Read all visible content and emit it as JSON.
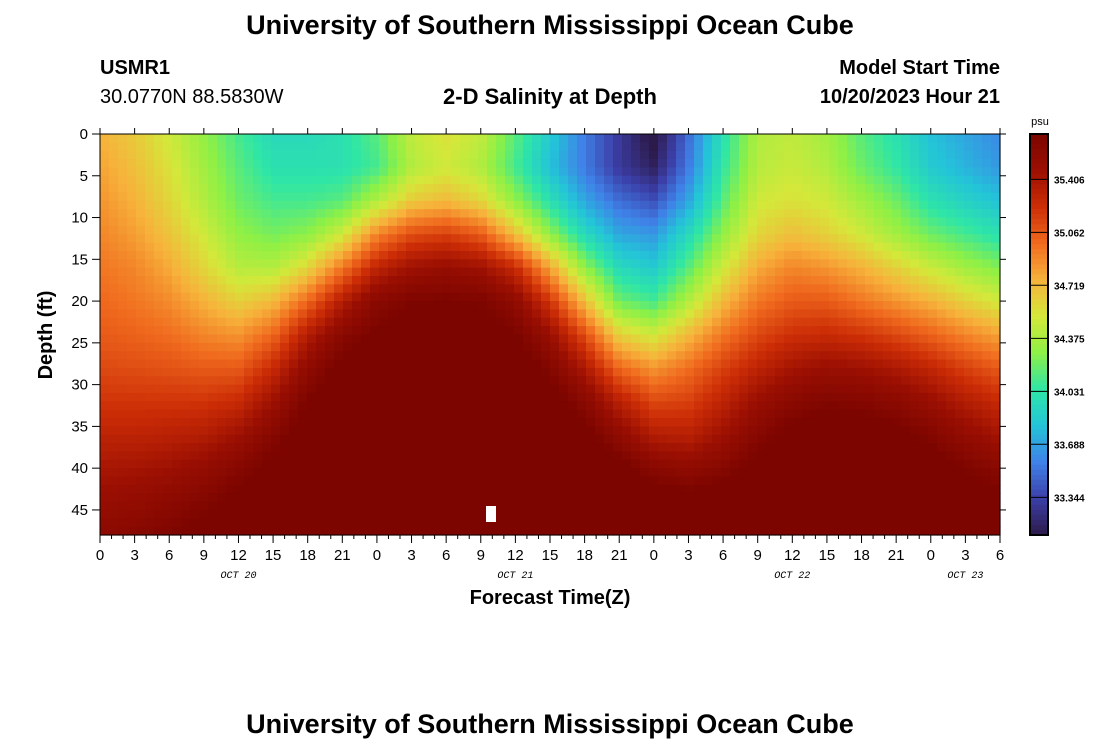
{
  "header": {
    "title": "University of Southern Mississippi Ocean Cube",
    "station_id": "USMR1",
    "station_coords": "30.0770N  88.5830W",
    "plot_title": "2-D Salinity at Depth",
    "start_label": "Model Start Time",
    "start_value": "10/20/2023 Hour 21"
  },
  "footer": {
    "title": "University of Southern Mississippi Ocean Cube"
  },
  "chart_data": {
    "type": "heatmap",
    "title": "2-D Salinity at Depth",
    "xlabel": "Forecast Time(Z)",
    "ylabel": "Depth (ft)",
    "x_hours_range": [
      0,
      78
    ],
    "y_range": [
      0,
      48
    ],
    "y_inverted": true,
    "x_tick_labels": [
      "0",
      "3",
      "6",
      "9",
      "12",
      "15",
      "18",
      "21",
      "0",
      "3",
      "6",
      "9",
      "12",
      "15",
      "18",
      "21",
      "0",
      "3",
      "6",
      "9",
      "12",
      "15",
      "18",
      "21",
      "0",
      "3",
      "6"
    ],
    "y_ticks": [
      0,
      5,
      10,
      15,
      20,
      25,
      30,
      35,
      40,
      45
    ],
    "date_labels": [
      {
        "label": "OCT 20",
        "hour": 12
      },
      {
        "label": "OCT 21",
        "hour": 36
      },
      {
        "label": "OCT 22",
        "hour": 60
      },
      {
        "label": "OCT 23",
        "hour": 75
      }
    ],
    "colorbar": {
      "unit": "psu",
      "ticks": [
        "35.406",
        "35.062",
        "34.719",
        "34.375",
        "34.031",
        "33.688",
        "33.344"
      ],
      "vmin": 33.1,
      "vmax": 35.7
    },
    "colormap": [
      "#2c1a4a",
      "#3c3fa8",
      "#3f82e8",
      "#23c4d8",
      "#2fe6a6",
      "#8ef045",
      "#d4e83a",
      "#f7b23b",
      "#f06a1e",
      "#cc2d06",
      "#9b0f02",
      "#7c0500"
    ],
    "depth_levels_ft": [
      0,
      4,
      8,
      12,
      16,
      20,
      24,
      28,
      32,
      36,
      40,
      44,
      48
    ],
    "forecast_hours": [
      0,
      3,
      6,
      9,
      12,
      15,
      18,
      21,
      24,
      27,
      30,
      33,
      36,
      39,
      42,
      45,
      48,
      51,
      54,
      57,
      60,
      63,
      66,
      69,
      72,
      75,
      78
    ],
    "salinity_grid": [
      [
        34.75,
        34.65,
        34.5,
        34.3,
        34.1,
        33.95,
        33.95,
        34.0,
        34.15,
        34.45,
        34.55,
        34.45,
        34.15,
        33.85,
        33.55,
        33.3,
        33.05,
        33.5,
        34.0,
        34.4,
        34.45,
        34.35,
        34.15,
        34.0,
        33.8,
        33.7,
        33.6
      ],
      [
        34.8,
        34.7,
        34.55,
        34.35,
        34.15,
        34.0,
        34.0,
        34.0,
        34.1,
        34.4,
        34.5,
        34.4,
        34.1,
        33.8,
        33.55,
        33.3,
        33.15,
        33.55,
        34.05,
        34.42,
        34.48,
        34.4,
        34.2,
        34.05,
        33.85,
        33.75,
        33.65
      ],
      [
        34.85,
        34.75,
        34.6,
        34.4,
        34.2,
        34.1,
        34.1,
        34.15,
        34.4,
        34.65,
        34.72,
        34.6,
        34.3,
        34.0,
        33.7,
        33.5,
        33.4,
        33.7,
        34.15,
        34.5,
        34.55,
        34.5,
        34.35,
        34.2,
        34.0,
        33.9,
        33.8
      ],
      [
        34.9,
        34.82,
        34.68,
        34.5,
        34.3,
        34.22,
        34.28,
        34.5,
        34.9,
        35.1,
        35.15,
        35.05,
        34.7,
        34.3,
        33.95,
        33.7,
        33.65,
        33.95,
        34.3,
        34.6,
        34.7,
        34.62,
        34.5,
        34.35,
        34.2,
        34.1,
        34.0
      ],
      [
        34.95,
        34.9,
        34.78,
        34.6,
        34.42,
        34.4,
        34.6,
        34.95,
        35.3,
        35.45,
        35.5,
        35.45,
        35.25,
        34.8,
        34.3,
        33.95,
        33.85,
        34.15,
        34.5,
        34.78,
        34.9,
        34.85,
        34.75,
        34.62,
        34.48,
        34.35,
        34.25
      ],
      [
        35.0,
        34.95,
        34.88,
        34.75,
        34.62,
        34.72,
        35.0,
        35.35,
        35.6,
        35.68,
        35.7,
        35.68,
        35.55,
        35.2,
        34.7,
        34.2,
        34.1,
        34.4,
        34.72,
        34.95,
        35.05,
        35.05,
        34.95,
        34.85,
        34.75,
        34.62,
        34.5
      ],
      [
        35.05,
        35.02,
        34.98,
        34.9,
        34.85,
        35.0,
        35.35,
        35.6,
        35.72,
        35.78,
        35.8,
        35.78,
        35.7,
        35.48,
        35.1,
        34.62,
        34.5,
        34.72,
        34.95,
        35.12,
        35.22,
        35.25,
        35.2,
        35.12,
        35.02,
        34.9,
        34.8
      ],
      [
        35.12,
        35.1,
        35.08,
        35.05,
        35.05,
        35.25,
        35.55,
        35.75,
        35.82,
        35.85,
        35.86,
        35.85,
        35.8,
        35.65,
        35.38,
        35.0,
        34.85,
        34.98,
        35.15,
        35.3,
        35.42,
        35.48,
        35.45,
        35.38,
        35.28,
        35.15,
        35.05
      ],
      [
        35.2,
        35.2,
        35.2,
        35.2,
        35.25,
        35.45,
        35.7,
        35.84,
        35.88,
        35.9,
        35.9,
        35.9,
        35.86,
        35.77,
        35.6,
        35.32,
        35.12,
        35.15,
        35.3,
        35.48,
        35.6,
        35.66,
        35.64,
        35.58,
        35.48,
        35.35,
        35.25
      ],
      [
        35.3,
        35.3,
        35.32,
        35.35,
        35.45,
        35.62,
        35.8,
        35.88,
        35.92,
        35.93,
        35.93,
        35.93,
        35.9,
        35.85,
        35.75,
        35.55,
        35.35,
        35.32,
        35.45,
        35.62,
        35.74,
        35.8,
        35.8,
        35.74,
        35.65,
        35.52,
        35.42
      ],
      [
        35.4,
        35.42,
        35.45,
        35.52,
        35.62,
        35.75,
        35.86,
        35.92,
        35.94,
        35.95,
        35.95,
        35.95,
        35.93,
        35.9,
        35.85,
        35.75,
        35.6,
        35.55,
        35.62,
        35.75,
        35.85,
        35.88,
        35.88,
        35.84,
        35.78,
        35.68,
        35.6
      ],
      [
        35.5,
        35.52,
        35.58,
        35.65,
        35.75,
        35.84,
        35.9,
        35.94,
        35.96,
        35.96,
        35.96,
        35.96,
        35.95,
        35.93,
        35.9,
        35.85,
        35.8,
        35.76,
        35.8,
        35.86,
        35.91,
        35.92,
        35.92,
        35.9,
        35.86,
        35.8,
        35.74
      ],
      [
        35.58,
        35.62,
        35.68,
        35.75,
        35.82,
        35.88,
        35.93,
        35.95,
        35.96,
        35.97,
        35.97,
        35.97,
        35.96,
        35.95,
        35.93,
        35.9,
        35.88,
        35.87,
        35.89,
        35.92,
        35.94,
        35.94,
        35.94,
        35.92,
        35.9,
        35.86,
        35.82
      ]
    ]
  }
}
